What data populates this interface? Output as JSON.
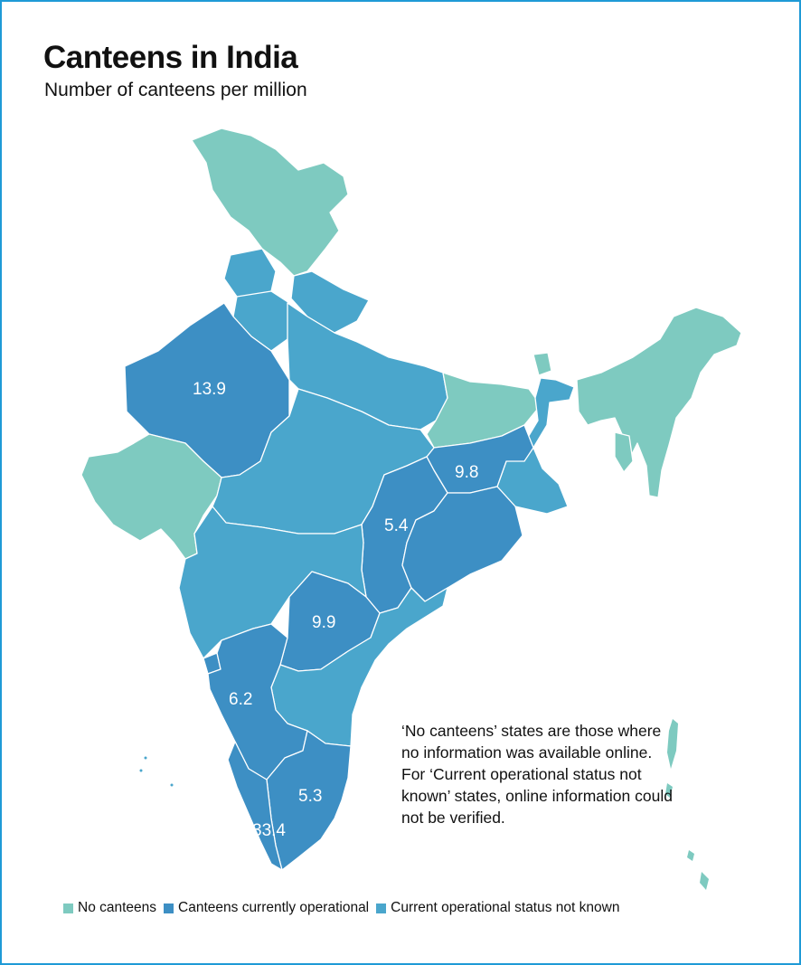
{
  "title": "Canteens in India",
  "subtitle": "Number of canteens per million",
  "colors": {
    "no_canteens": "#7ecac0",
    "operational": "#3d8fc4",
    "status_unknown": "#4aa6cc",
    "border": "#1f9ad6"
  },
  "legend": [
    {
      "label": "No canteens",
      "color_key": "no_canteens"
    },
    {
      "label": "Canteens currently operational",
      "color_key": "operational"
    },
    {
      "label": "Current operational status not known",
      "color_key": "status_unknown"
    }
  ],
  "values": {
    "rajasthan": "13.9",
    "jharkhand": "9.8",
    "chhattisgarh": "5.4",
    "telangana": "9.9",
    "karnataka": "6.2",
    "tamil_nadu": "5.3",
    "kerala": "33.4"
  },
  "note": "‘No canteens’ states are those where no information was available online. For ‘Current operational status not known’ states, online information could not be verified."
}
